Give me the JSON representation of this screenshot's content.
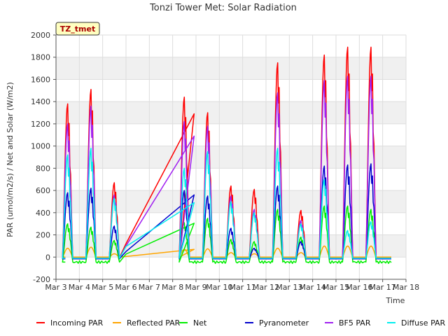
{
  "chart_data": {
    "type": "line",
    "title": "Tonzi Tower Met: Solar Radiation",
    "badge": "TZ_tmet",
    "xlabel": "Time",
    "ylabel": "PAR (umol/m2/s) / Net and Solar (W/m2)",
    "xlim": [
      3,
      18
    ],
    "ylim": [
      -200,
      2000
    ],
    "xticks": [
      3,
      4,
      5,
      6,
      7,
      8,
      9,
      10,
      11,
      12,
      13,
      14,
      15,
      16,
      17,
      18
    ],
    "xtick_labels": [
      "Mar 3",
      "Mar 4",
      "Mar 5",
      "Mar 6",
      "Mar 7",
      "Mar 8",
      "Mar 9",
      "Mar 10",
      "Mar 11",
      "Mar 12",
      "Mar 13",
      "Mar 14",
      "Mar 15",
      "Mar 16",
      "Mar 17",
      "Mar 18"
    ],
    "yticks": [
      -200,
      0,
      200,
      400,
      600,
      800,
      1000,
      1200,
      1400,
      1600,
      1800,
      2000
    ],
    "ytick_labels": [
      "-200",
      "0",
      "200",
      "400",
      "600",
      "800",
      "1000",
      "1200",
      "1400",
      "1600",
      "1800",
      "2000"
    ],
    "legend_position": "bottom",
    "days": [
      4,
      5,
      6,
      9,
      10,
      11,
      12,
      13,
      14,
      15,
      16,
      17
    ],
    "gap": {
      "from": 6.0,
      "to": 8.92
    },
    "series": [
      {
        "name": "Incoming PAR",
        "color": "#ff0000",
        "night": -5,
        "end_value": 1290,
        "peaks": [
          1380,
          1510,
          670,
          1440,
          1300,
          640,
          610,
          1750,
          420,
          1820,
          1890,
          1890
        ]
      },
      {
        "name": "Reflected PAR",
        "color": "#ffa500",
        "night": 0,
        "end_value": 70,
        "peaks": [
          80,
          90,
          30,
          70,
          75,
          40,
          30,
          80,
          40,
          100,
          100,
          100
        ]
      },
      {
        "name": "Net",
        "color": "#00ee00",
        "night": -45,
        "end_value": 305,
        "peaks": [
          300,
          270,
          150,
          310,
          350,
          160,
          140,
          430,
          180,
          460,
          460,
          430
        ]
      },
      {
        "name": "Pyranometer",
        "color": "#0000cc",
        "night": -15,
        "end_value": 560,
        "peaks": [
          580,
          620,
          280,
          600,
          550,
          260,
          80,
          640,
          140,
          820,
          830,
          840
        ]
      },
      {
        "name": "BF5 PAR",
        "color": "#a020f0",
        "night": -10,
        "end_value": 1090,
        "peaks": [
          1200,
          1360,
          560,
          1220,
          1180,
          550,
          430,
          1480,
          330,
          1590,
          1630,
          1630
        ]
      },
      {
        "name": "Diffuse PAR",
        "color": "#00eeee",
        "night": -10,
        "end_value": 490,
        "peaks": [
          920,
          980,
          530,
          800,
          950,
          500,
          400,
          980,
          300,
          700,
          240,
          320
        ]
      }
    ]
  }
}
